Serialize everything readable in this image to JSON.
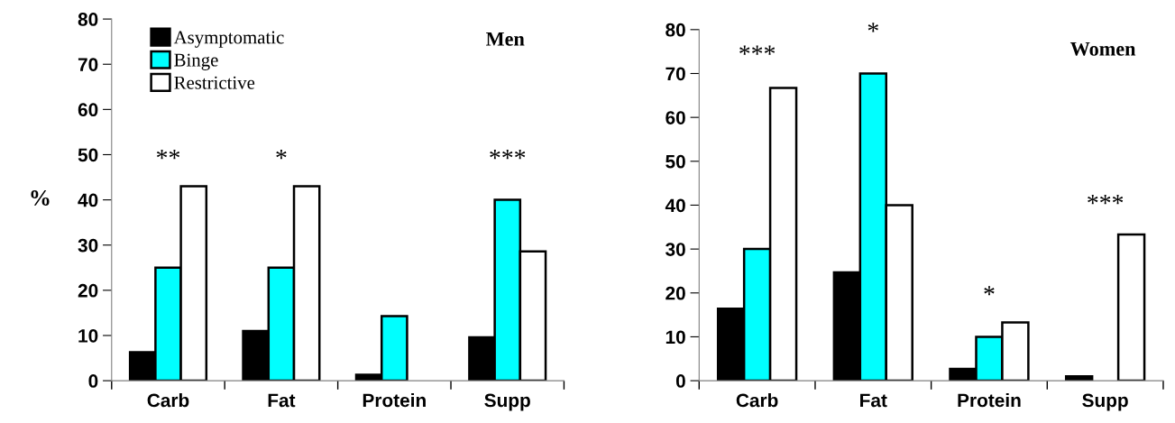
{
  "chart_data": [
    {
      "type": "bar",
      "title": "Men",
      "ylabel": "%",
      "categories": [
        "Carb",
        "Fat",
        "Protein",
        "Supp"
      ],
      "series": [
        {
          "name": "Asymptomatic",
          "color": "#000000",
          "values": [
            6.3,
            11,
            1.3,
            9.6
          ]
        },
        {
          "name": "Binge",
          "color": "#00ffff",
          "values": [
            25,
            25,
            14.3,
            40
          ]
        },
        {
          "name": "Restrictive",
          "color": "#ffffff",
          "values": [
            43,
            43,
            null,
            28.6
          ]
        }
      ],
      "ylim": [
        0,
        80
      ],
      "yticks": [
        0,
        10,
        20,
        30,
        40,
        50,
        60,
        70,
        80
      ],
      "grid": false,
      "legend": "top left",
      "annotations": [
        "**",
        "*",
        "***"
      ]
    },
    {
      "type": "bar",
      "title": "Women",
      "categories": [
        "Carb",
        "Fat",
        "Protein",
        "Supp"
      ],
      "series": [
        {
          "color": "#000000",
          "values": [
            16.4,
            24.7,
            2.7,
            1.0
          ]
        },
        {
          "color": "#00ffff",
          "values": [
            30,
            70,
            10,
            null
          ]
        },
        {
          "color": "#ffffff",
          "values": [
            66.7,
            40,
            13.3,
            33.3
          ]
        }
      ],
      "ylim": [
        0,
        80
      ],
      "yticks": [
        0,
        10,
        20,
        30,
        40,
        50,
        60,
        70,
        80
      ],
      "grid": false,
      "legend": false,
      "annotations": [
        "***",
        "*",
        "*",
        "***"
      ]
    }
  ]
}
